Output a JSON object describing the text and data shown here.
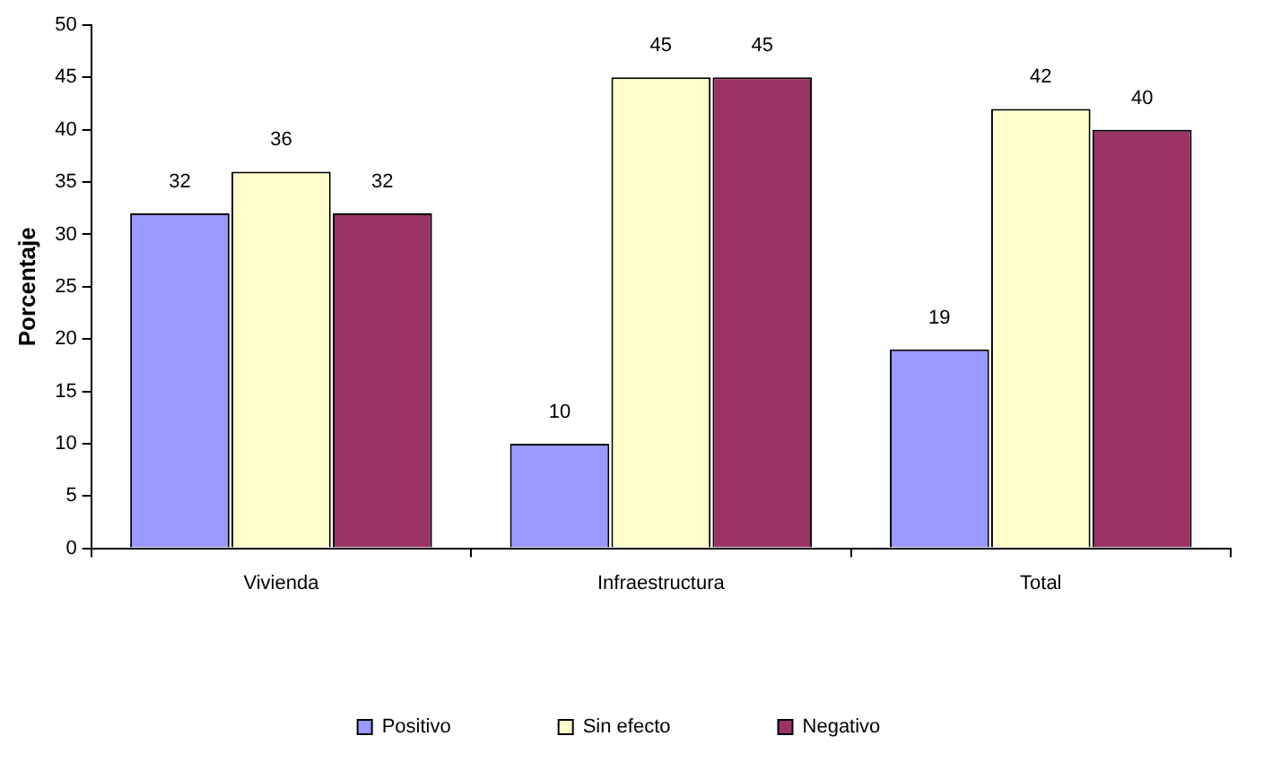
{
  "chart_data": {
    "type": "bar",
    "ylabel": "Porcentaje",
    "categories": [
      "Vivienda",
      "Infraestructura",
      "Total"
    ],
    "series": [
      {
        "name": "Positivo",
        "color": "#9999ff",
        "values": [
          32,
          10,
          19
        ]
      },
      {
        "name": "Sin efecto",
        "color": "#ffffcc",
        "values": [
          36,
          45,
          42
        ]
      },
      {
        "name": "Negativo",
        "color": "#993366",
        "values": [
          32,
          45,
          40
        ]
      }
    ],
    "ylim": [
      0,
      50
    ],
    "yticks": [
      0,
      5,
      10,
      15,
      20,
      25,
      30,
      35,
      40,
      45,
      50
    ],
    "grid": false,
    "legend": "bottom",
    "data_labels": true
  }
}
